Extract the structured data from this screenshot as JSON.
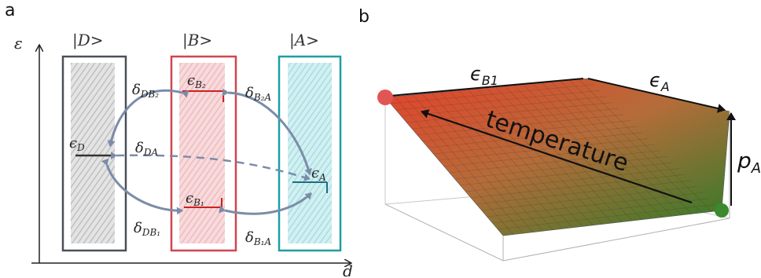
{
  "colors": {
    "D": "#4a5058",
    "B": "#d0454f",
    "A": "#1f9ea3",
    "arrow": "#7b8ca8",
    "axis": "#222222",
    "surface_top": "#d84a2e",
    "surface_bottom": "#3e7a2a",
    "dot_red": "#e25555",
    "dot_green": "#3c8a2e"
  },
  "panel_a": {
    "label": "a",
    "axis_y_label": "ε",
    "axis_x_label": "d",
    "states": [
      {
        "id": "D",
        "ket": "|D>",
        "color": "#4a5058"
      },
      {
        "id": "B",
        "ket": "|B>",
        "color": "#d0454f"
      },
      {
        "id": "A",
        "ket": "|A>",
        "color": "#1f9ea3"
      }
    ],
    "levels": {
      "eD": "ϵ",
      "eD_sub": "D",
      "eB2": "ϵ",
      "eB2_sub": "B₂",
      "eB1": "ϵ",
      "eB1_sub": "B₁",
      "eA": "ϵ",
      "eA_sub": "A"
    },
    "couplings": {
      "dDB2": "δ",
      "dDB2_sub": "DB₂",
      "dB2A": "δ",
      "dB2A_sub": "B₂A",
      "dDA": "δ",
      "dDA_sub": "DA",
      "dDB1": "δ",
      "dDB1_sub": "DB₁",
      "dB1A": "δ",
      "dB1A_sub": "B₁A"
    }
  },
  "panel_b": {
    "label": "b",
    "epsB1": "ϵ",
    "epsB1_sub": "B1",
    "epsA": "ϵ",
    "epsA_sub": "A",
    "temperature": "temperature",
    "pA": "p",
    "pA_sub": "A"
  }
}
